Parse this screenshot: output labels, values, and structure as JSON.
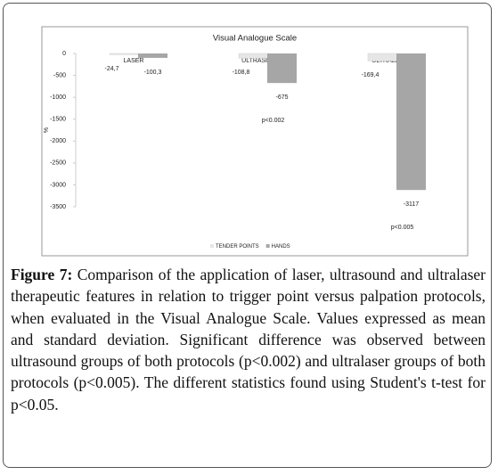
{
  "chart_data": {
    "type": "bar",
    "title": "Visual Analogue Scale",
    "y_label": "%",
    "categories": [
      "LASER",
      "ULTRASOUND",
      "ULTRALASER"
    ],
    "series": [
      {
        "name": "TENDER POINTS",
        "color": "#e6e6e6",
        "values": [
          -24.7,
          -108.8,
          -169.4
        ],
        "value_labels": [
          "-24,7",
          "-108,8",
          "-169,4"
        ]
      },
      {
        "name": "HANDS",
        "color": "#a6a6a6",
        "values": [
          -100.3,
          -675,
          -3117
        ],
        "value_labels": [
          "-100,3",
          "-675",
          "-3117"
        ]
      }
    ],
    "annotations": [
      "p<0.002",
      "p<0.005"
    ],
    "ylim": [
      -3500,
      0
    ],
    "yticks": [
      0,
      -500,
      -1000,
      -1500,
      -2000,
      -2500,
      -3000,
      -3500
    ],
    "legend": "bottom"
  },
  "caption": {
    "label": "Figure 7:",
    "text": "Comparison of the application of laser, ultrasound and ultralaser therapeutic features in relation to trigger point versus palpation protocols, when evaluated in the Visual Analogue Scale. Values expressed as mean and standard deviation. Significant difference was observed between ultrasound groups of both protocols (p<0.002) and ultralaser groups of both protocols (p<0.005). The different statistics found using Student's t-test for p<0.05."
  }
}
